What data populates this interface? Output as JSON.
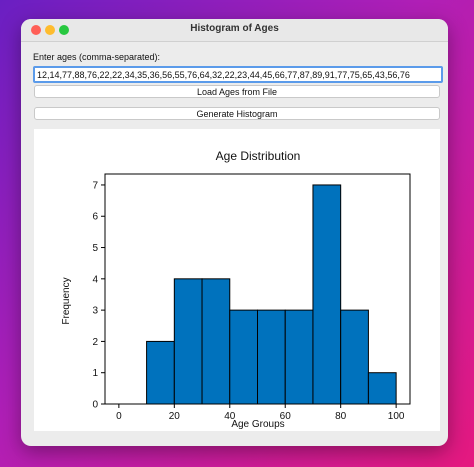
{
  "window": {
    "title": "Histogram of Ages"
  },
  "form": {
    "prompt": "Enter ages (comma-separated):",
    "ages_value": "12,14,77,88,76,22,22,34,35,36,56,55,76,64,32,22,23,44,45,66,77,87,89,91,77,75,65,43,56,76",
    "load_button": "Load Ages from File",
    "generate_button": "Generate Histogram"
  },
  "chart_data": {
    "type": "bar",
    "title": "Age Distribution",
    "xlabel": "Age Groups",
    "ylabel": "Frequency",
    "bins": [
      [
        10,
        20
      ],
      [
        20,
        30
      ],
      [
        30,
        40
      ],
      [
        40,
        50
      ],
      [
        50,
        60
      ],
      [
        60,
        70
      ],
      [
        70,
        80
      ],
      [
        80,
        90
      ],
      [
        90,
        100
      ]
    ],
    "values": [
      2,
      4,
      4,
      3,
      3,
      3,
      7,
      3,
      1
    ],
    "xlim": [
      -5,
      105
    ],
    "ylim": [
      0,
      7.35
    ],
    "xticks": [
      0,
      20,
      40,
      60,
      80,
      100
    ],
    "yticks": [
      0,
      1,
      2,
      3,
      4,
      5,
      6,
      7
    ],
    "bar_color": "#0072bd",
    "edge_color": "#000000",
    "grid": false
  }
}
